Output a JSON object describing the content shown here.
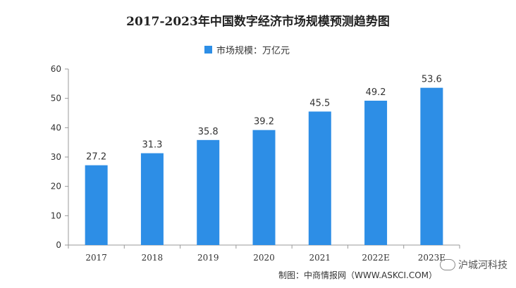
{
  "header": {
    "title": "2017-2023年中国数字经济市场规模预测趋势图"
  },
  "legend": {
    "label": "市场规模：万亿元",
    "color": "#2d8ee6"
  },
  "footer": {
    "source": "制图：中商情报网（WWW.ASKCI.COM）",
    "wechat_account": "沪城河科技"
  },
  "chart_data": {
    "type": "bar",
    "title": "2017-2023年中国数字经济市场规模预测趋势图",
    "categories": [
      "2017",
      "2018",
      "2019",
      "2020",
      "2021",
      "2022E",
      "2023E"
    ],
    "series": [
      {
        "name": "市场规模：万亿元",
        "values": [
          27.2,
          31.3,
          35.8,
          39.2,
          45.5,
          49.2,
          53.6
        ],
        "color": "#2d8ee6"
      }
    ],
    "value_labels": [
      "27.2",
      "31.3",
      "35.8",
      "39.2",
      "45.5",
      "49.2",
      "53.6"
    ],
    "ylim": [
      0,
      60
    ],
    "yticks": [
      0,
      10,
      20,
      30,
      40,
      50,
      60
    ],
    "grid": false,
    "legend_position": "top-center"
  }
}
